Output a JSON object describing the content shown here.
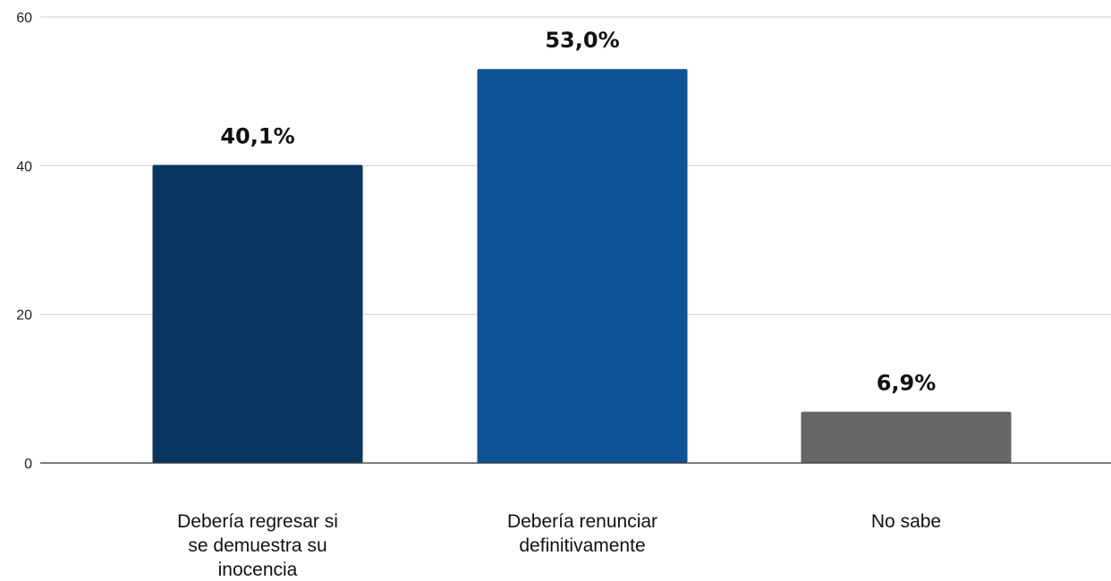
{
  "chart_data": {
    "type": "bar",
    "title": "",
    "xlabel": "",
    "ylabel": "",
    "ylim": [
      0,
      60
    ],
    "yticks": [
      0,
      20,
      40,
      60
    ],
    "grid": true,
    "legend": "none",
    "categories": [
      "Debería regresar si se demuestra su inocencia",
      "Debería renunciar definitivamente",
      "No sabe"
    ],
    "category_lines": [
      [
        "Debería regresar si",
        "se demuestra su",
        "inocencia"
      ],
      [
        "Debería renunciar",
        "definitivamente"
      ],
      [
        "No sabe"
      ]
    ],
    "values": [
      40.1,
      53.0,
      6.9
    ],
    "value_labels": [
      "40,1%",
      "53,0%",
      "6,9%"
    ],
    "colors": [
      "#08365e",
      "#0e5394",
      "#666666"
    ],
    "gridline_color": "#cccccc",
    "axis_color": "#333333"
  }
}
